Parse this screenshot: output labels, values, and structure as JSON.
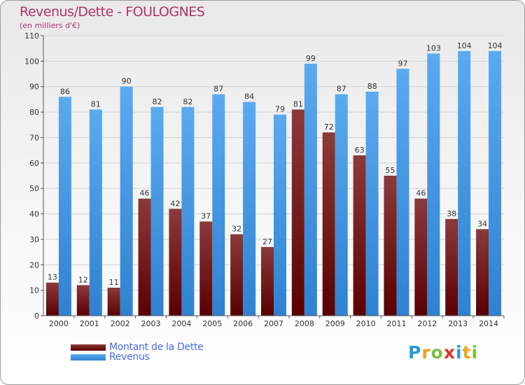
{
  "header": {
    "title": "Revenus/Dette - FOULOGNES",
    "subtitle": "(en milliers d'€)"
  },
  "colors": {
    "dette_top": "#8b3a3a",
    "dette_bottom": "#5a0000",
    "revenus_top": "#5aaaf0",
    "revenus_bottom": "#2e82d0",
    "title": "#b0336a",
    "legend_text": "#4a6adf"
  },
  "chart_data": {
    "type": "bar",
    "title": "Revenus/Dette - FOULOGNES",
    "ylabel": "(en milliers d'€)",
    "xlabel": "",
    "ylim": [
      0,
      110
    ],
    "yticks": [
      0,
      10,
      20,
      30,
      40,
      50,
      60,
      70,
      80,
      90,
      100,
      110
    ],
    "grid": true,
    "legend_position": "bottom-left",
    "categories": [
      "2000",
      "2001",
      "2002",
      "2003",
      "2004",
      "2005",
      "2006",
      "2007",
      "2008",
      "2009",
      "2010",
      "2011",
      "2012",
      "2013",
      "2014"
    ],
    "series": [
      {
        "name": "Montant de la Dette",
        "values": [
          13,
          12,
          11,
          46,
          42,
          37,
          32,
          27,
          81,
          72,
          63,
          55,
          46,
          38,
          34
        ]
      },
      {
        "name": "Revenus",
        "values": [
          86,
          81,
          90,
          82,
          82,
          87,
          84,
          79,
          99,
          87,
          88,
          97,
          103,
          104,
          104
        ]
      }
    ]
  },
  "legend": {
    "items": [
      "Montant de la Dette",
      "Revenus"
    ]
  },
  "logo": {
    "letters": [
      "P",
      "r",
      "o",
      "x",
      "i",
      "t",
      "i"
    ],
    "letter_colors": [
      "#2a9ad8",
      "#f0a020",
      "#7ac142",
      "#e03030",
      "#2a9ad8",
      "#f0a020",
      "#7ac142"
    ]
  }
}
